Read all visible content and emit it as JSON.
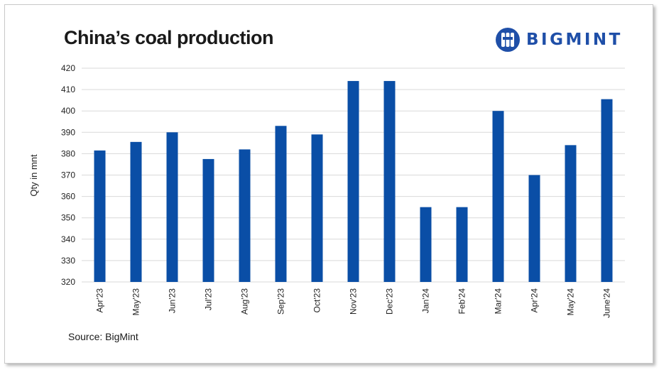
{
  "header": {
    "title": "China’s coal production",
    "brand": "BIGMINT"
  },
  "footer": {
    "source": "Source: BigMint"
  },
  "colors": {
    "bar": "#0a4ea6",
    "grid": "#d9d9d9",
    "brand": "#1f4fa8"
  },
  "icons": {
    "logo": "bigmint-logo-icon"
  },
  "chart_data": {
    "type": "bar",
    "title": "China’s coal production",
    "xlabel": "",
    "ylabel": "Qty in mnt",
    "categories": [
      "Apr'23",
      "May'23",
      "Jun'23",
      "Jul'23",
      "Aug'23",
      "Sep'23",
      "Oct'23",
      "Nov'23",
      "Dec'23",
      "Jan'24",
      "Feb'24",
      "Mar'24",
      "Apr'24",
      "May'24",
      "June'24"
    ],
    "values": [
      381.5,
      385.5,
      390,
      377.5,
      382,
      393,
      389,
      414,
      414,
      355,
      355,
      400,
      370,
      384,
      405.5
    ],
    "ylim": [
      320,
      420
    ],
    "yticks": [
      320,
      330,
      340,
      350,
      360,
      370,
      380,
      390,
      400,
      410,
      420
    ],
    "grid": true,
    "legend": "none"
  }
}
